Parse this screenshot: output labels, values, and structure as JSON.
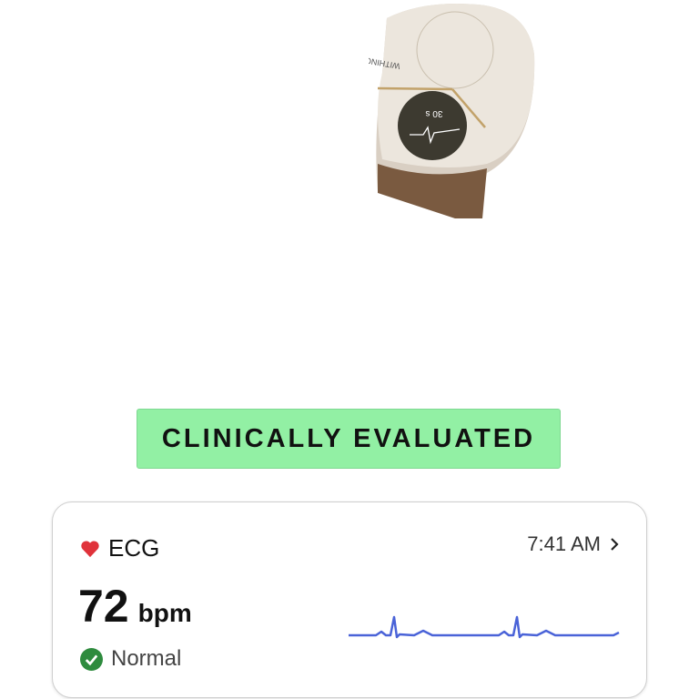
{
  "hero": {
    "watch_brand": "WITHINGS",
    "watch_display": "30 s"
  },
  "badge": {
    "label": "CLINICALLY EVALUATED",
    "color": "#92f0a4"
  },
  "card": {
    "title": "ECG",
    "time": "7:41 AM",
    "heart_rate": "72",
    "unit": "bpm",
    "status": "Normal",
    "icons": {
      "title": "heart-icon",
      "time": "chevron-right-icon",
      "status": "check-circle-icon"
    },
    "colors": {
      "heart": "#e0323a",
      "status": "#2e8b3e",
      "wave": "#4a63d8"
    }
  }
}
